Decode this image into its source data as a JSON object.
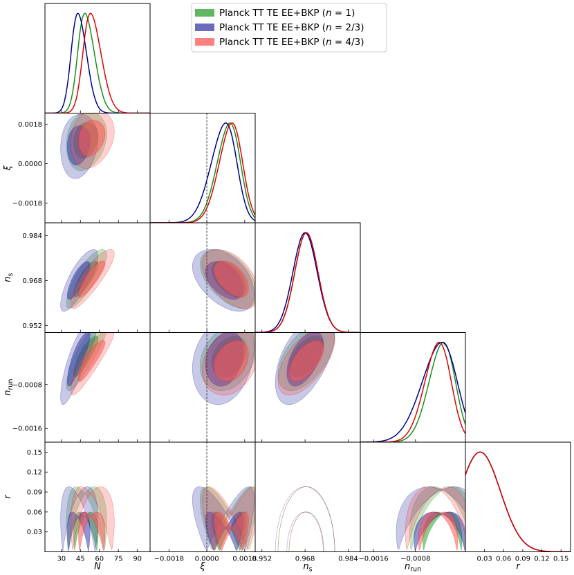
{
  "chart_data": {
    "type": "triangle-corner-plot",
    "parameters": [
      {
        "key": "N",
        "label": "N",
        "ticks": [
          30,
          45,
          60,
          75,
          90
        ],
        "tick_labels": [
          "30",
          "45",
          "60",
          "75",
          "90"
        ],
        "range": [
          17,
          100
        ]
      },
      {
        "key": "xi",
        "label": "ξ",
        "ticks": [
          -0.0018,
          0.0,
          0.0018
        ],
        "tick_labels": [
          "−0.0018",
          "0.0000",
          "0.0018"
        ],
        "range": [
          -0.0027,
          0.0023
        ]
      },
      {
        "key": "ns",
        "label": "n",
        "label_sub": "s",
        "ticks": [
          0.952,
          0.968,
          0.984
        ],
        "tick_labels": [
          "0.952",
          "0.968",
          "0.984"
        ],
        "range": [
          0.9495,
          0.9885
        ]
      },
      {
        "key": "nrun",
        "label": "n",
        "label_sub": "run",
        "ticks": [
          -0.0016,
          -0.0008
        ],
        "tick_labels": [
          "−0.0016",
          "−0.0008"
        ],
        "range": [
          -0.00185,
          0.00015
        ]
      },
      {
        "key": "r",
        "label": "r",
        "ticks": [
          0.03,
          0.06,
          0.09,
          0.12,
          0.15
        ],
        "tick_labels": [
          "0.03",
          "0.06",
          "0.09",
          "0.12",
          "0.15"
        ],
        "range": [
          0.0,
          0.165
        ]
      }
    ],
    "reference_line": {
      "parameter": "xi",
      "value": 0.0
    },
    "series": [
      {
        "name": "Planck TT TE EE+BKP (n = 1)",
        "label_main": "Planck TT TE EE+BKP (",
        "label_var": "n",
        "label_tail": " = 1)",
        "color": "#2ca02c",
        "line": "#1a8c1a",
        "mean": [
          48.5,
          0.0011,
          0.9685,
          -0.00027,
          0.0
        ],
        "sd": [
          6.5,
          0.00055,
          0.0043,
          0.00025,
          0.04
        ],
        "skew": [
          1.2,
          -0.8,
          0,
          -0.7,
          0
        ],
        "corr": {
          "0-2": 0.82,
          "0-3": 0.85,
          "1-2": -0.5,
          "1-3": 0.3,
          "2-3": 0.55,
          "0-4": -0.45,
          "1-4": -0.8,
          "3-4": -0.3,
          "0-1": 0.2
        }
      },
      {
        "name": "Planck TT TE EE+BKP (n = 2/3)",
        "label_main": "Planck TT TE EE+BKP (",
        "label_var": "n",
        "label_tail": " = 2/3)",
        "color": "#3a3aa8",
        "line": "#00008b",
        "mean": [
          43.0,
          0.0009,
          0.968,
          -0.0003,
          0.0
        ],
        "sd": [
          6.0,
          0.0006,
          0.0045,
          0.00033,
          0.04
        ],
        "skew": [
          1.0,
          -1.1,
          0,
          -1.0,
          0
        ],
        "corr": {
          "0-2": 0.8,
          "0-3": 0.85,
          "1-2": -0.45,
          "1-3": 0.25,
          "2-3": 0.55,
          "0-4": -0.5,
          "1-4": -0.8,
          "3-4": -0.3,
          "0-1": 0.15
        }
      },
      {
        "name": "Planck TT TE EE+BKP (n = 4/3)",
        "label_main": "Planck TT TE EE+BKP (",
        "label_var": "n",
        "label_tail": " = 4/3)",
        "color": "#ff5555",
        "line": "#e00000",
        "mean": [
          53.0,
          0.0012,
          0.9685,
          -0.00035,
          0.0
        ],
        "sd": [
          7.0,
          0.00055,
          0.0043,
          0.00025,
          0.04
        ],
        "skew": [
          1.3,
          -0.8,
          0,
          -0.7,
          0
        ],
        "corr": {
          "0-2": 0.85,
          "0-3": 0.88,
          "1-2": -0.5,
          "1-3": 0.3,
          "2-3": 0.6,
          "0-4": -0.45,
          "1-4": -0.8,
          "3-4": -0.3,
          "0-1": 0.2
        }
      }
    ],
    "contour_levels": [
      "68%",
      "95%"
    ],
    "legend_position": "top-right"
  }
}
